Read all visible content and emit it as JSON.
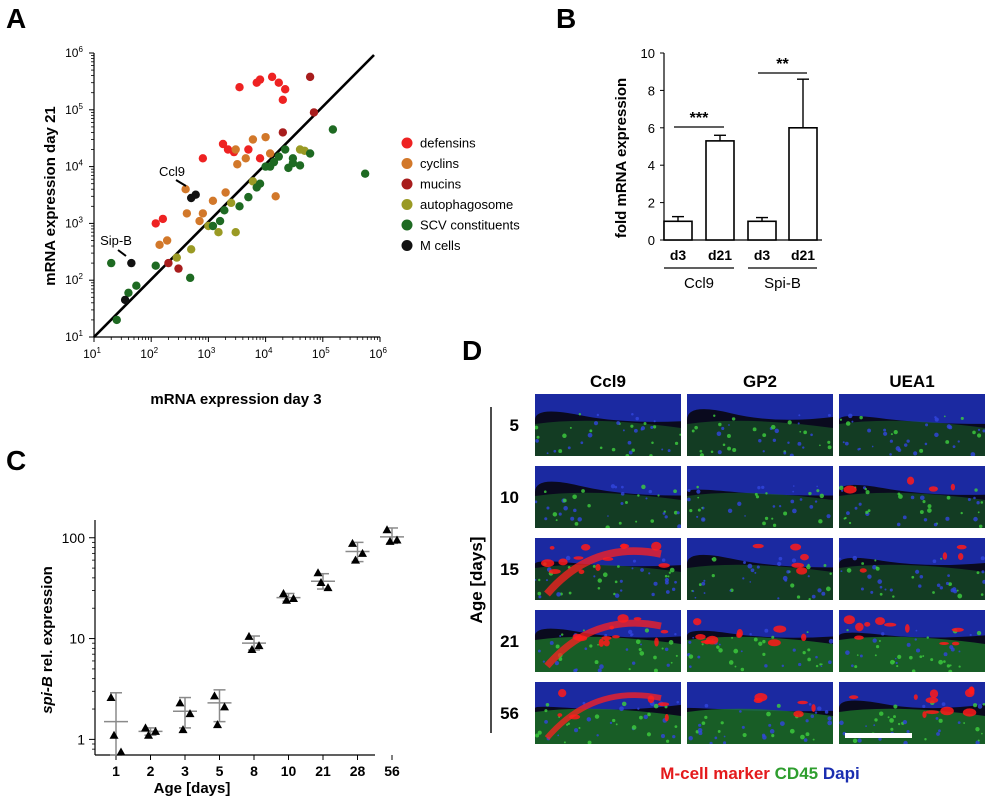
{
  "panels": {
    "a": {
      "letter": "A"
    },
    "b": {
      "letter": "B"
    },
    "c": {
      "letter": "C"
    },
    "d": {
      "letter": "D"
    }
  },
  "chart_data": [
    {
      "panel": "A",
      "type": "scatter",
      "xlabel": "mRNA expression day 3",
      "ylabel": "mRNA expression day 21",
      "scale": "log10",
      "xlim": [
        10,
        1000000
      ],
      "ylim": [
        10,
        1000000
      ],
      "x_ticks": [
        {
          "base": "10",
          "exp": "1",
          "value": 10
        },
        {
          "base": "10",
          "exp": "2",
          "value": 100
        },
        {
          "base": "10",
          "exp": "3",
          "value": 1000
        },
        {
          "base": "10",
          "exp": "4",
          "value": 10000
        },
        {
          "base": "10",
          "exp": "5",
          "value": 100000
        },
        {
          "base": "10",
          "exp": "6",
          "value": 1000000
        }
      ],
      "y_ticks": [
        {
          "base": "10",
          "exp": "1",
          "value": 10
        },
        {
          "base": "10",
          "exp": "2",
          "value": 100
        },
        {
          "base": "10",
          "exp": "3",
          "value": 1000
        },
        {
          "base": "10",
          "exp": "4",
          "value": 10000
        },
        {
          "base": "10",
          "exp": "5",
          "value": 100000
        },
        {
          "base": "10",
          "exp": "6",
          "value": 1000000
        }
      ],
      "diagonal": "y = x",
      "legend_position": "right",
      "series": [
        {
          "name": "defensins",
          "color": "#ee2222",
          "points": [
            [
              3500,
              250000
            ],
            [
              7000,
              300000
            ],
            [
              8000,
              340000
            ],
            [
              13000,
              380000
            ],
            [
              17000,
              300000
            ],
            [
              22000,
              230000
            ],
            [
              20000,
              150000
            ],
            [
              1800,
              25000
            ],
            [
              2200,
              20000
            ],
            [
              2800,
              18000
            ],
            [
              5000,
              20000
            ],
            [
              8000,
              14000
            ],
            [
              800,
              14000
            ],
            [
              120,
              1000
            ],
            [
              160,
              1200
            ]
          ]
        },
        {
          "name": "cyclins",
          "color": "#d2782a",
          "points": [
            [
              140,
              420
            ],
            [
              190,
              500
            ],
            [
              420,
              1500
            ],
            [
              800,
              1500
            ],
            [
              1200,
              2500
            ],
            [
              2000,
              3500
            ],
            [
              3200,
              11000
            ],
            [
              4500,
              14000
            ],
            [
              12000,
              17000
            ],
            [
              15000,
              3000
            ],
            [
              3000,
              20000
            ],
            [
              6000,
              30000
            ],
            [
              10000,
              33000
            ],
            [
              700,
              1100
            ],
            [
              400,
              4000
            ]
          ]
        },
        {
          "name": "mucins",
          "color": "#a81d1d",
          "points": [
            [
              60000,
              380000
            ],
            [
              70000,
              90000
            ],
            [
              20000,
              40000
            ],
            [
              200,
              200
            ],
            [
              300,
              160
            ]
          ]
        },
        {
          "name": "autophagosome",
          "color": "#9a9a24",
          "points": [
            [
              40000,
              20000
            ],
            [
              48000,
              19000
            ],
            [
              3000,
              700
            ],
            [
              1500,
              700
            ],
            [
              500,
              350
            ],
            [
              280,
              250
            ],
            [
              1000,
              900
            ],
            [
              2500,
              2300
            ],
            [
              6000,
              5500
            ]
          ]
        },
        {
          "name": "SCV constituents",
          "color": "#1e6a22",
          "points": [
            [
              25,
              20
            ],
            [
              40,
              60
            ],
            [
              55,
              80
            ],
            [
              20,
              200
            ],
            [
              120,
              180
            ],
            [
              480,
              110
            ],
            [
              1200,
              900
            ],
            [
              1600,
              1100
            ],
            [
              1900,
              1700
            ],
            [
              3500,
              2000
            ],
            [
              5000,
              2900
            ],
            [
              7000,
              4300
            ],
            [
              8000,
              5000
            ],
            [
              10000,
              10000
            ],
            [
              14000,
              12000
            ],
            [
              17000,
              15000
            ],
            [
              22000,
              20000
            ],
            [
              30000,
              14000
            ],
            [
              40000,
              10500
            ],
            [
              60000,
              17000
            ],
            [
              150000,
              45000
            ],
            [
              550000,
              7500
            ],
            [
              12000,
              10000
            ],
            [
              25000,
              9500
            ],
            [
              30000,
              11500
            ]
          ]
        },
        {
          "name": "M cells",
          "color": "#111111",
          "points": [
            [
              35,
              45
            ],
            [
              500,
              2800
            ],
            [
              600,
              3200
            ],
            [
              45,
              200
            ]
          ]
        }
      ],
      "annotations": [
        {
          "label": "Ccl9",
          "x": 500,
          "y": 3200
        },
        {
          "label": "Sip-B",
          "x": 45,
          "y": 200
        }
      ]
    },
    {
      "panel": "B",
      "type": "bar",
      "ylabel": "fold mRNA expression",
      "ylim": [
        0,
        10
      ],
      "y_ticks": [
        0,
        2,
        4,
        6,
        8,
        10
      ],
      "groups": [
        {
          "name": "Ccl9",
          "bars": [
            {
              "label": "d3",
              "value": 1.0,
              "error": 0.25
            },
            {
              "label": "d21",
              "value": 5.3,
              "error": 0.3
            }
          ],
          "significance": "***"
        },
        {
          "name": "Spi-B",
          "bars": [
            {
              "label": "d3",
              "value": 1.0,
              "error": 0.2
            },
            {
              "label": "d21",
              "value": 6.0,
              "error": 2.6
            }
          ],
          "significance": "**"
        }
      ]
    },
    {
      "panel": "C",
      "type": "scatter",
      "xlabel": "Age [days]",
      "ylabel_italic": "spi-B",
      "ylabel_rest": " rel. expression",
      "scale_y": "log10",
      "ylim": [
        0.7,
        150
      ],
      "y_ticks": [
        {
          "label": "1",
          "value": 1
        },
        {
          "label": "10",
          "value": 10
        },
        {
          "label": "100",
          "value": 100
        }
      ],
      "categories": [
        "1",
        "2",
        "3",
        "5",
        "8",
        "10",
        "21",
        "28",
        "56"
      ],
      "replicates": [
        [
          2.6,
          0.75,
          1.1
        ],
        [
          1.3,
          1.2,
          1.1
        ],
        [
          2.3,
          1.8,
          1.25
        ],
        [
          2.7,
          2.1,
          1.4
        ],
        [
          10.5,
          8.5,
          7.8
        ],
        [
          28,
          25,
          24
        ],
        [
          45,
          32,
          36
        ],
        [
          88,
          70,
          60
        ],
        [
          120,
          95,
          92
        ]
      ],
      "mean": [
        1.5,
        1.2,
        1.9,
        2.3,
        9.0,
        25.5,
        37,
        73,
        102
      ],
      "sd_low": [
        0.7,
        1.1,
        1.3,
        1.5,
        7.7,
        23.5,
        31,
        58,
        88
      ],
      "sd_high": [
        2.9,
        1.3,
        2.6,
        3.1,
        10.6,
        28,
        44,
        90,
        125
      ]
    }
  ],
  "panel_a": {
    "legend": [
      {
        "label": "defensins",
        "color": "#ee2222"
      },
      {
        "label": "cyclins",
        "color": "#d2782a"
      },
      {
        "label": "mucins",
        "color": "#a81d1d"
      },
      {
        "label": "autophagosome",
        "color": "#9a9a24"
      },
      {
        "label": "SCV constituents",
        "color": "#1e6a22"
      },
      {
        "label": "M cells",
        "color": "#111111"
      }
    ]
  },
  "panel_d": {
    "columns": [
      "Ccl9",
      "GP2",
      "UEA1"
    ],
    "rows": [
      "5",
      "10",
      "15",
      "21",
      "56"
    ],
    "ylabel": "Age [days]",
    "red_intensity": [
      [
        0.05,
        0.05,
        0.05
      ],
      [
        0.05,
        0.08,
        0.25
      ],
      [
        0.9,
        0.35,
        0.25
      ],
      [
        0.75,
        0.7,
        0.7
      ],
      [
        0.45,
        0.35,
        0.8
      ]
    ],
    "caption": [
      {
        "text": "M-cell marker",
        "color": "#e41a1c"
      },
      {
        "text": "CD45",
        "color": "#2e9e2e"
      },
      {
        "text": "Dapi",
        "color": "#1a2eb0"
      }
    ]
  }
}
